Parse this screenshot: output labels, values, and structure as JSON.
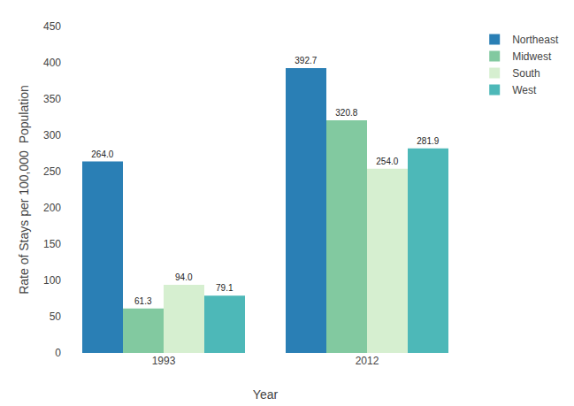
{
  "chart_data": {
    "type": "bar",
    "xlabel": "Year",
    "ylabel": "Rate of Stays per 100,000  Population",
    "categories": [
      "1993",
      "2012"
    ],
    "series": [
      {
        "name": "Northeast",
        "color": "#2a7fb5",
        "values": [
          264.0,
          392.7
        ],
        "value_labels": [
          "264.0",
          "392.7"
        ]
      },
      {
        "name": "Midwest",
        "color": "#82c9a0",
        "values": [
          61.3,
          320.8
        ],
        "value_labels": [
          "61.3",
          "320.8"
        ]
      },
      {
        "name": "South",
        "color": "#d6efd0",
        "values": [
          94.0,
          254.0
        ],
        "value_labels": [
          "94.0",
          "254.0"
        ]
      },
      {
        "name": "West",
        "color": "#4db8b8",
        "values": [
          79.1,
          281.9
        ],
        "value_labels": [
          "79.1",
          "281.9"
        ]
      }
    ],
    "ylim": [
      0,
      450
    ],
    "yticks": [
      0,
      50,
      100,
      150,
      200,
      250,
      300,
      350,
      400,
      450
    ],
    "grid": false,
    "legend": "upper right",
    "data_labels": true
  }
}
